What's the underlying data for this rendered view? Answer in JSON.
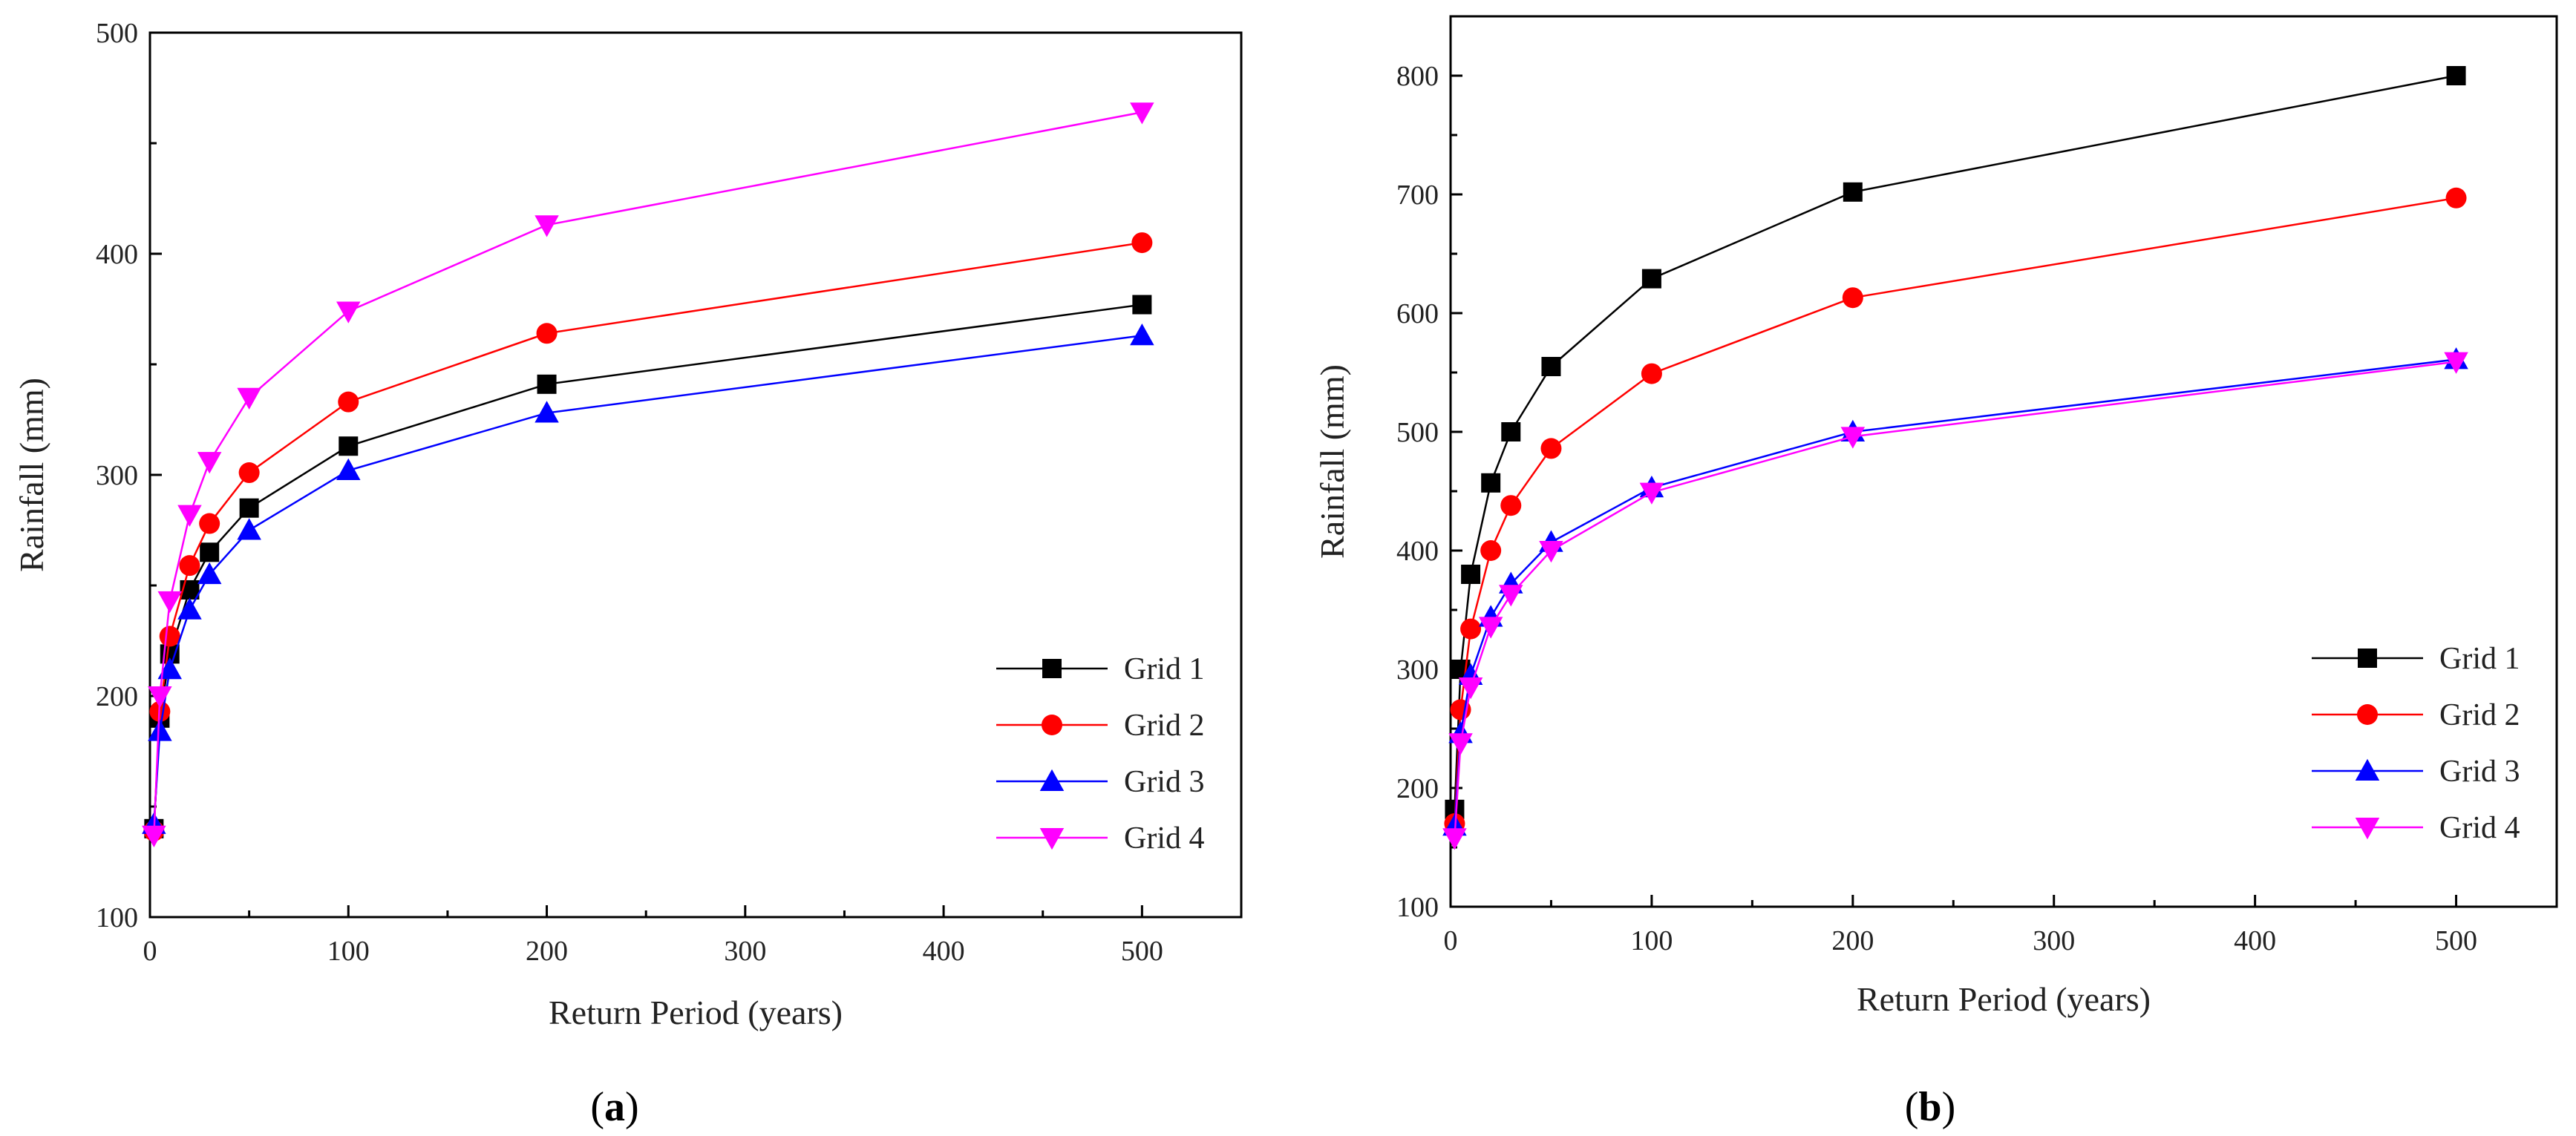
{
  "chart_data": [
    {
      "type": "line",
      "panel": "a",
      "caption_open": "(",
      "caption_letter": "a",
      "caption_close": ")",
      "xlabel": "Return Period (years)",
      "ylabel": "Rainfall (mm)",
      "xlim": [
        0,
        550
      ],
      "ylim": [
        100,
        500
      ],
      "xticks": [
        0,
        100,
        200,
        300,
        400,
        500
      ],
      "yticks": [
        100,
        200,
        300,
        400,
        500
      ],
      "grid": false,
      "legend": "bottom-right",
      "x": [
        2,
        5,
        10,
        20,
        30,
        50,
        100,
        200,
        500
      ],
      "series": [
        {
          "name": "Grid 1",
          "color": "#000000",
          "marker": "square",
          "values": [
            140,
            190,
            219,
            248,
            265,
            285,
            313,
            341,
            377
          ]
        },
        {
          "name": "Grid 2",
          "color": "#ff0000",
          "marker": "circle",
          "values": [
            139,
            193,
            227,
            259,
            278,
            301,
            333,
            364,
            405
          ]
        },
        {
          "name": "Grid 3",
          "color": "#0000ff",
          "marker": "triangle-up",
          "values": [
            142,
            184,
            212,
            239,
            255,
            275,
            302,
            328,
            363
          ]
        },
        {
          "name": "Grid 4",
          "color": "#ff00ff",
          "marker": "triangle-down",
          "values": [
            137,
            200,
            243,
            282,
            306,
            335,
            374,
            413,
            464
          ]
        }
      ]
    },
    {
      "type": "line",
      "panel": "b",
      "caption_open": "(",
      "caption_letter": "b",
      "caption_close": ")",
      "xlabel": "Return Period (years)",
      "ylabel": "Rainfall (mm)",
      "xlim": [
        0,
        550
      ],
      "ylim": [
        100,
        850
      ],
      "xticks": [
        0,
        100,
        200,
        300,
        400,
        500
      ],
      "yticks": [
        100,
        200,
        300,
        400,
        500,
        600,
        700,
        800
      ],
      "grid": false,
      "legend": "bottom-right",
      "x": [
        2,
        5,
        10,
        20,
        30,
        50,
        100,
        200,
        500
      ],
      "series": [
        {
          "name": "Grid 1",
          "color": "#000000",
          "marker": "square",
          "values": [
            182,
            300,
            380,
            457,
            500,
            555,
            629,
            702,
            800
          ]
        },
        {
          "name": "Grid 2",
          "color": "#ff0000",
          "marker": "circle",
          "values": [
            170,
            266,
            334,
            400,
            438,
            486,
            549,
            613,
            697
          ]
        },
        {
          "name": "Grid 3",
          "color": "#0000ff",
          "marker": "triangle-up",
          "values": [
            168,
            246,
            295,
            344,
            372,
            407,
            453,
            500,
            561
          ]
        },
        {
          "name": "Grid 4",
          "color": "#ff00ff",
          "marker": "triangle-down",
          "values": [
            158,
            238,
            285,
            336,
            363,
            400,
            449,
            496,
            559
          ]
        }
      ]
    }
  ]
}
